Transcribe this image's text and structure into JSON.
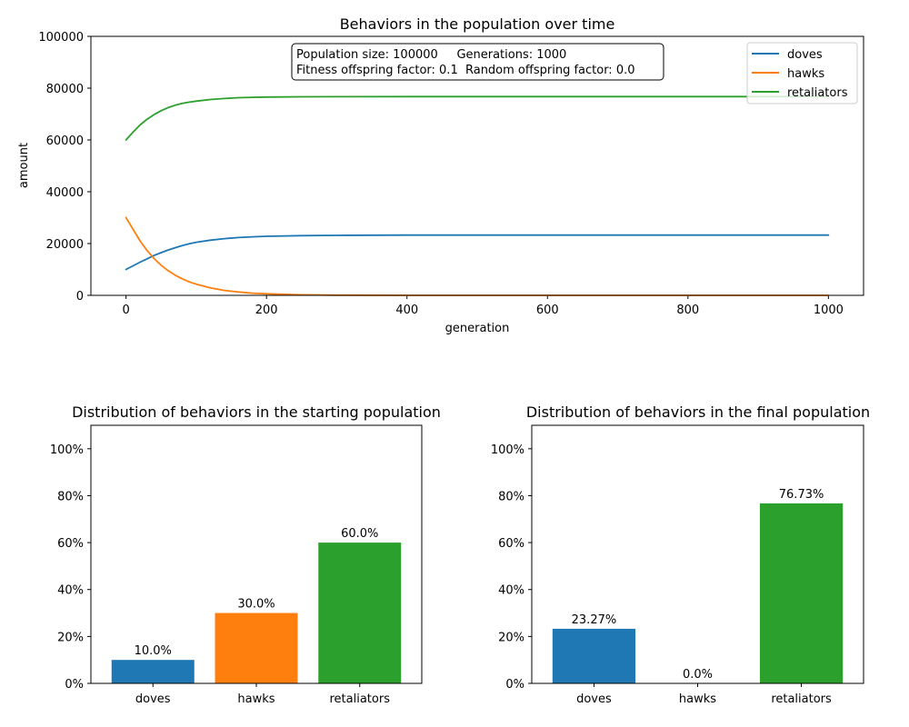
{
  "chart_data": [
    {
      "type": "line",
      "title": "Behaviors in the population over time",
      "xlabel": "generation",
      "ylabel": "amount",
      "xlim": [
        -50,
        1050
      ],
      "ylim": [
        0,
        100000
      ],
      "xticks": [
        0,
        200,
        400,
        600,
        800,
        1000
      ],
      "yticks": [
        0,
        20000,
        40000,
        60000,
        80000,
        100000
      ],
      "grid": false,
      "legend_position": "upper right",
      "info_box": {
        "line1": "Population size: 100000     Generations: 1000",
        "line2": "Fitness offspring factor: 0.1  Random offspring factor: 0.0"
      },
      "series": [
        {
          "name": "doves",
          "color": "#1f77b4",
          "x": [
            0,
            10,
            20,
            30,
            40,
            50,
            60,
            70,
            80,
            90,
            100,
            120,
            140,
            160,
            180,
            200,
            250,
            300,
            400,
            500,
            600,
            700,
            800,
            900,
            1000
          ],
          "y": [
            10000,
            11400,
            12800,
            14100,
            15400,
            16500,
            17500,
            18400,
            19200,
            19900,
            20500,
            21300,
            21900,
            22300,
            22600,
            22800,
            23050,
            23150,
            23250,
            23270,
            23270,
            23270,
            23270,
            23270,
            23270
          ]
        },
        {
          "name": "hawks",
          "color": "#ff7f0e",
          "x": [
            0,
            10,
            20,
            30,
            40,
            50,
            60,
            70,
            80,
            90,
            100,
            120,
            140,
            160,
            180,
            200,
            250,
            300,
            400,
            500,
            600,
            700,
            800,
            900,
            1000
          ],
          "y": [
            30000,
            25500,
            21000,
            17300,
            14200,
            11600,
            9500,
            7800,
            6400,
            5200,
            4300,
            2900,
            1900,
            1300,
            850,
            600,
            200,
            80,
            10,
            0,
            0,
            0,
            0,
            0,
            0
          ]
        },
        {
          "name": "retaliators",
          "color": "#2ca02c",
          "x": [
            0,
            10,
            20,
            30,
            40,
            50,
            60,
            70,
            80,
            90,
            100,
            120,
            140,
            160,
            180,
            200,
            250,
            300,
            400,
            500,
            600,
            700,
            800,
            900,
            1000
          ],
          "y": [
            60000,
            63000,
            65800,
            68000,
            69800,
            71300,
            72500,
            73400,
            74100,
            74600,
            75000,
            75600,
            76000,
            76300,
            76450,
            76550,
            76650,
            76700,
            76720,
            76730,
            76730,
            76730,
            76730,
            76730,
            76730
          ]
        }
      ]
    },
    {
      "type": "bar",
      "title": "Distribution of behaviors in the starting population",
      "categories": [
        "doves",
        "hawks",
        "retaliators"
      ],
      "values": [
        10.0,
        30.0,
        60.0
      ],
      "labels": [
        "10.0%",
        "30.0%",
        "60.0%"
      ],
      "colors": [
        "#1f77b4",
        "#ff7f0e",
        "#2ca02c"
      ],
      "ylim": [
        0,
        110
      ],
      "yticks": [
        0,
        20,
        40,
        60,
        80,
        100
      ],
      "ytick_labels": [
        "0%",
        "20%",
        "40%",
        "60%",
        "80%",
        "100%"
      ]
    },
    {
      "type": "bar",
      "title": "Distribution of behaviors in the final population",
      "categories": [
        "doves",
        "hawks",
        "retaliators"
      ],
      "values": [
        23.27,
        0.0,
        76.73
      ],
      "labels": [
        "23.27%",
        "0.0%",
        "76.73%"
      ],
      "colors": [
        "#1f77b4",
        "#ff7f0e",
        "#2ca02c"
      ],
      "ylim": [
        0,
        110
      ],
      "yticks": [
        0,
        20,
        40,
        60,
        80,
        100
      ],
      "ytick_labels": [
        "0%",
        "20%",
        "40%",
        "60%",
        "80%",
        "100%"
      ]
    }
  ]
}
